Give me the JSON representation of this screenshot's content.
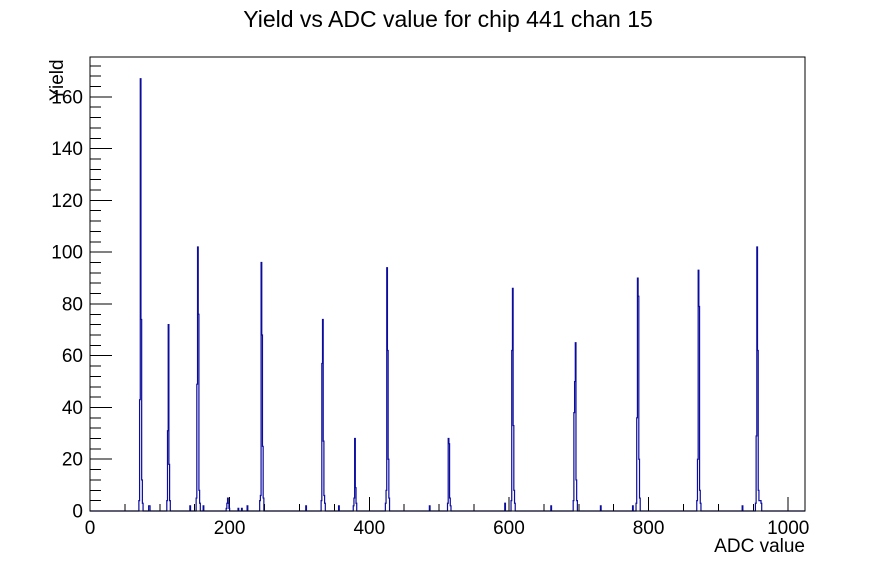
{
  "chart_data": {
    "type": "bar",
    "title": "Yield vs ADC value for chip 441 chan 15",
    "xlabel": "ADC value",
    "ylabel": "Yield",
    "xlim": [
      0,
      1024
    ],
    "ylim": [
      0,
      175.4
    ],
    "x_major_ticks": [
      0,
      200,
      400,
      600,
      800,
      1000
    ],
    "x_minor_step": 50,
    "y_major_ticks": [
      0,
      20,
      40,
      60,
      80,
      100,
      120,
      140,
      160
    ],
    "y_minor_step": 4,
    "grid": "off",
    "legend": "none",
    "line_color": "#0b0b9e",
    "axis_color": "#000000",
    "background_color": "#ffffff",
    "bin_width_adc": 1,
    "bins": [
      [
        70,
        4
      ],
      [
        71,
        43
      ],
      [
        72,
        167
      ],
      [
        73,
        74
      ],
      [
        74,
        12
      ],
      [
        75,
        3
      ],
      [
        84,
        2
      ],
      [
        85,
        2
      ],
      [
        110,
        4
      ],
      [
        111,
        31
      ],
      [
        112,
        72
      ],
      [
        113,
        18
      ],
      [
        114,
        4
      ],
      [
        143,
        2
      ],
      [
        152,
        5
      ],
      [
        153,
        49
      ],
      [
        154,
        102
      ],
      [
        155,
        76
      ],
      [
        156,
        8
      ],
      [
        157,
        3
      ],
      [
        162,
        2
      ],
      [
        195,
        1
      ],
      [
        196,
        3
      ],
      [
        197,
        5
      ],
      [
        198,
        3
      ],
      [
        199,
        1
      ],
      [
        212,
        1
      ],
      [
        217,
        1
      ],
      [
        225,
        2
      ],
      [
        243,
        4
      ],
      [
        244,
        6
      ],
      [
        245,
        96
      ],
      [
        246,
        68
      ],
      [
        247,
        25
      ],
      [
        248,
        5
      ],
      [
        309,
        2
      ],
      [
        331,
        4
      ],
      [
        332,
        57
      ],
      [
        333,
        74
      ],
      [
        334,
        27
      ],
      [
        335,
        6
      ],
      [
        336,
        3
      ],
      [
        356,
        2
      ],
      [
        377,
        2
      ],
      [
        378,
        5
      ],
      [
        379,
        28
      ],
      [
        380,
        9
      ],
      [
        381,
        3
      ],
      [
        423,
        3
      ],
      [
        424,
        8
      ],
      [
        425,
        94
      ],
      [
        426,
        62
      ],
      [
        427,
        20
      ],
      [
        428,
        5
      ],
      [
        486,
        2
      ],
      [
        512,
        3
      ],
      [
        513,
        28
      ],
      [
        514,
        26
      ],
      [
        515,
        5
      ],
      [
        516,
        2
      ],
      [
        594,
        3
      ],
      [
        603,
        4
      ],
      [
        604,
        62
      ],
      [
        605,
        86
      ],
      [
        606,
        33
      ],
      [
        607,
        8
      ],
      [
        608,
        3
      ],
      [
        660,
        2
      ],
      [
        692,
        4
      ],
      [
        693,
        38
      ],
      [
        694,
        50
      ],
      [
        695,
        65
      ],
      [
        696,
        12
      ],
      [
        697,
        4
      ],
      [
        731,
        2
      ],
      [
        777,
        2
      ],
      [
        782,
        3
      ],
      [
        783,
        36
      ],
      [
        784,
        90
      ],
      [
        785,
        83
      ],
      [
        786,
        20
      ],
      [
        787,
        5
      ],
      [
        869,
        4
      ],
      [
        870,
        20
      ],
      [
        871,
        93
      ],
      [
        872,
        79
      ],
      [
        873,
        8
      ],
      [
        874,
        3
      ],
      [
        934,
        2
      ],
      [
        953,
        3
      ],
      [
        954,
        29
      ],
      [
        955,
        102
      ],
      [
        956,
        62
      ],
      [
        957,
        8
      ],
      [
        958,
        4
      ],
      [
        959,
        4
      ],
      [
        960,
        4
      ],
      [
        961,
        3
      ]
    ]
  }
}
